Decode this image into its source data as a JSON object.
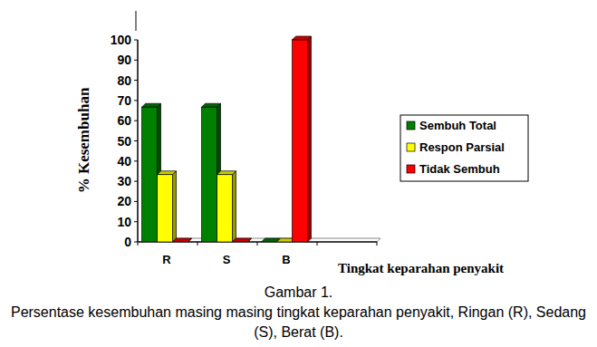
{
  "chart_data": {
    "type": "bar",
    "title": "Gambar 1.",
    "subtitle": "Persentase kesembuhan masing masing tingkat keparahan penyakit, Ringan (R), Sedang (S), Berat (B).",
    "x_label": "Tingkat keparahan penyakit",
    "y_label": "% Kesembuhan",
    "categories": [
      "R",
      "S",
      "B"
    ],
    "series": [
      {
        "name": "Sembuh Total",
        "color": "#008000",
        "values": [
          66.7,
          66.7,
          0
        ]
      },
      {
        "name": "Respon Parsial",
        "color": "#ffff00",
        "values": [
          33.3,
          33.3,
          0
        ]
      },
      {
        "name": "Tidak Sembuh",
        "color": "#ff0000",
        "values": [
          0,
          0,
          100
        ]
      }
    ],
    "ylim": [
      0,
      100
    ],
    "yticks": [
      0,
      10,
      20,
      30,
      40,
      50,
      60,
      70,
      80,
      90,
      100
    ],
    "grid": false,
    "legend": "right"
  }
}
